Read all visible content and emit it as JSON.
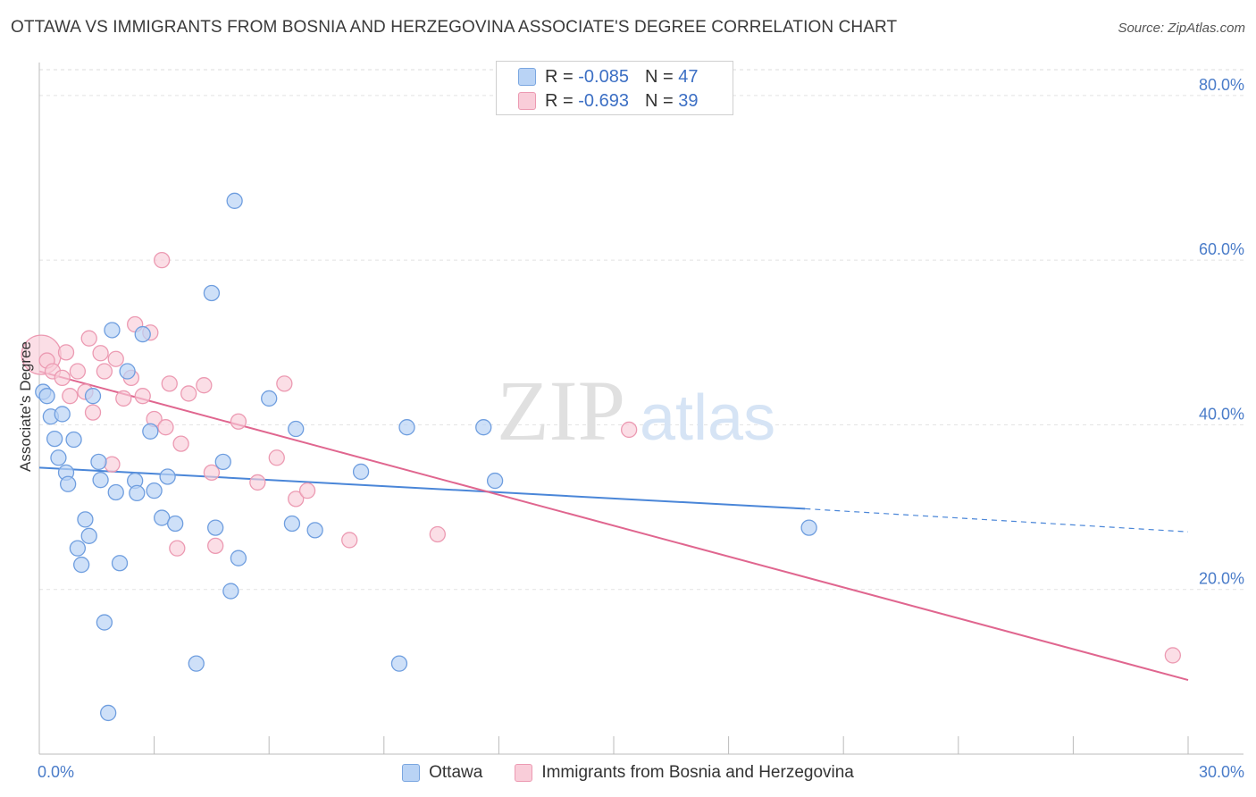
{
  "title": "OTTAWA VS IMMIGRANTS FROM BOSNIA AND HERZEGOVINA ASSOCIATE'S DEGREE CORRELATION CHART",
  "source": "Source: ZipAtlas.com",
  "legend": {
    "r_label": "R =",
    "n_label": "N =",
    "rows": [
      {
        "r": "-0.085",
        "n": "47"
      },
      {
        "r": "-0.693",
        "n": "39"
      }
    ]
  },
  "colors": {
    "ottawa": "#4a86d8",
    "bosnia": "#e0668f",
    "ottawa_fill": "#b9d3f5",
    "bosnia_fill": "#f9cdd9"
  },
  "watermark": "ZIPatlas",
  "chart_data": {
    "type": "scatter",
    "title": "OTTAWA VS IMMIGRANTS FROM BOSNIA AND HERZEGOVINA ASSOCIATE'S DEGREE CORRELATION CHART",
    "xlabel": "",
    "ylabel": "Associate's Degree",
    "xlim": [
      0,
      30
    ],
    "ylim": [
      0,
      84
    ],
    "x_tick_labels": [
      "0.0%",
      "30.0%"
    ],
    "y_ticks": [
      20,
      40,
      60,
      80
    ],
    "y_tick_labels": [
      "20.0%",
      "40.0%",
      "60.0%",
      "80.0%"
    ],
    "grid": true,
    "series": [
      {
        "name": "Ottawa",
        "points": [
          [
            0.1,
            44.0
          ],
          [
            0.2,
            43.5
          ],
          [
            0.3,
            41.0
          ],
          [
            0.4,
            38.3
          ],
          [
            0.5,
            36.0
          ],
          [
            0.6,
            41.3
          ],
          [
            0.7,
            34.2
          ],
          [
            0.75,
            32.8
          ],
          [
            0.9,
            38.2
          ],
          [
            1.0,
            25.0
          ],
          [
            1.1,
            23.0
          ],
          [
            1.2,
            28.5
          ],
          [
            1.3,
            26.5
          ],
          [
            1.4,
            43.5
          ],
          [
            1.55,
            35.5
          ],
          [
            1.6,
            33.3
          ],
          [
            1.7,
            16.0
          ],
          [
            1.8,
            5.0
          ],
          [
            1.9,
            51.5
          ],
          [
            2.0,
            31.8
          ],
          [
            2.1,
            23.2
          ],
          [
            2.3,
            46.5
          ],
          [
            2.5,
            33.2
          ],
          [
            2.55,
            31.7
          ],
          [
            2.7,
            51.0
          ],
          [
            2.9,
            39.2
          ],
          [
            3.0,
            32.0
          ],
          [
            3.2,
            28.7
          ],
          [
            3.35,
            33.7
          ],
          [
            3.55,
            28.0
          ],
          [
            4.1,
            11.0
          ],
          [
            4.5,
            56.0
          ],
          [
            4.6,
            27.5
          ],
          [
            4.8,
            35.5
          ],
          [
            5.0,
            19.8
          ],
          [
            5.1,
            67.2
          ],
          [
            5.2,
            23.8
          ],
          [
            6.0,
            43.2
          ],
          [
            6.6,
            28.0
          ],
          [
            6.7,
            39.5
          ],
          [
            7.2,
            27.2
          ],
          [
            8.4,
            34.3
          ],
          [
            9.4,
            11.0
          ],
          [
            9.6,
            39.7
          ],
          [
            11.6,
            39.7
          ],
          [
            11.9,
            33.2
          ],
          [
            20.1,
            27.5
          ]
        ]
      },
      {
        "name": "Immigrants from Bosnia and Herzegovina",
        "points": [
          [
            0.05,
            48.5
          ],
          [
            0.2,
            47.8
          ],
          [
            0.35,
            46.5
          ],
          [
            0.6,
            45.7
          ],
          [
            0.7,
            48.8
          ],
          [
            0.8,
            43.5
          ],
          [
            1.0,
            46.5
          ],
          [
            1.2,
            44.0
          ],
          [
            1.3,
            50.5
          ],
          [
            1.4,
            41.5
          ],
          [
            1.6,
            48.7
          ],
          [
            1.7,
            46.5
          ],
          [
            1.9,
            35.2
          ],
          [
            2.0,
            48.0
          ],
          [
            2.2,
            43.2
          ],
          [
            2.4,
            45.7
          ],
          [
            2.5,
            52.2
          ],
          [
            2.7,
            43.5
          ],
          [
            2.9,
            51.2
          ],
          [
            3.0,
            40.7
          ],
          [
            3.2,
            60.0
          ],
          [
            3.3,
            39.7
          ],
          [
            3.4,
            45.0
          ],
          [
            3.6,
            25.0
          ],
          [
            3.7,
            37.7
          ],
          [
            3.9,
            43.8
          ],
          [
            4.3,
            44.8
          ],
          [
            4.5,
            34.2
          ],
          [
            4.6,
            25.3
          ],
          [
            5.2,
            40.4
          ],
          [
            5.7,
            33.0
          ],
          [
            6.2,
            36.0
          ],
          [
            6.4,
            45.0
          ],
          [
            6.7,
            31.0
          ],
          [
            7.0,
            32.0
          ],
          [
            8.1,
            26.0
          ],
          [
            10.4,
            26.7
          ],
          [
            15.4,
            39.4
          ],
          [
            29.6,
            12.0
          ]
        ]
      }
    ],
    "trend_lines": [
      {
        "series": "Ottawa",
        "x_start": 0,
        "y_start": 34.8,
        "x_end": 20.0,
        "y_end": 29.8,
        "dashed_to_x": 30,
        "dashed_to_y": 27.0
      },
      {
        "series": "Immigrants from Bosnia and Herzegovina",
        "x_start": 0,
        "y_start": 46.5,
        "x_end": 30,
        "y_end": 9.0
      }
    ]
  },
  "bottom_legend": [
    {
      "label": "Ottawa"
    },
    {
      "label": "Immigrants from Bosnia and Herzegovina"
    }
  ]
}
